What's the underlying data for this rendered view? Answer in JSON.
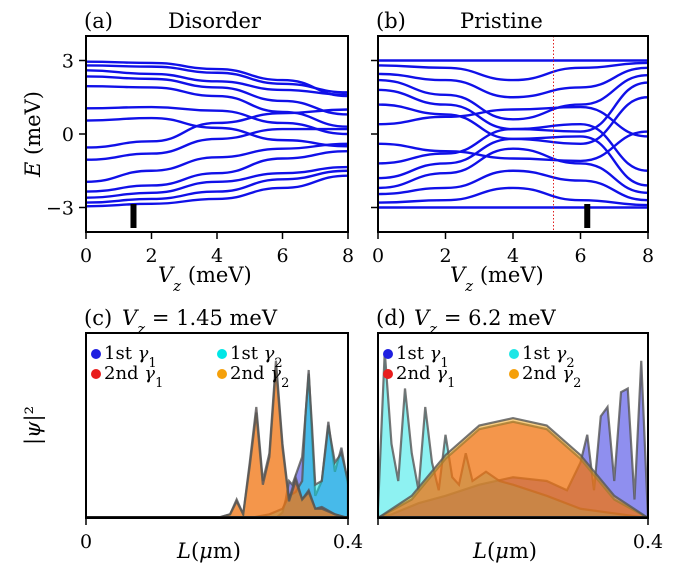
{
  "chart_data": [
    {
      "panel": "(a)",
      "title": "Disorder",
      "type": "line",
      "xlabel": "V_z (meV)",
      "ylabel": "E (meV)",
      "xlim": [
        0,
        8
      ],
      "ylim": [
        -4,
        4
      ],
      "xticks": [
        "0",
        "2",
        "4",
        "6",
        "8"
      ],
      "yticks": [
        "3",
        "0",
        "−3"
      ],
      "series_color": "#1010e8",
      "marker": {
        "x": 1.45,
        "style": "black bar"
      },
      "bands": [
        {
          "x": [
            0,
            2,
            4,
            6,
            8
          ],
          "y": [
            2.95,
            2.9,
            2.65,
            2.2,
            1.55
          ]
        },
        {
          "x": [
            0,
            2,
            4,
            6,
            8
          ],
          "y": [
            2.8,
            2.75,
            2.5,
            2.05,
            1.7
          ]
        },
        {
          "x": [
            0,
            2,
            4,
            6,
            8
          ],
          "y": [
            2.6,
            2.45,
            2.15,
            1.8,
            1.6
          ]
        },
        {
          "x": [
            0,
            2,
            4,
            6,
            8
          ],
          "y": [
            2.35,
            2.25,
            1.9,
            1.35,
            0.8
          ]
        },
        {
          "x": [
            0,
            2,
            4,
            6,
            8
          ],
          "y": [
            1.95,
            1.9,
            1.55,
            0.9,
            0.3
          ]
        },
        {
          "x": [
            0,
            2,
            4,
            6,
            8
          ],
          "y": [
            1.05,
            1.1,
            0.95,
            0.45,
            0.0
          ]
        },
        {
          "x": [
            0,
            2,
            4,
            6,
            8
          ],
          "y": [
            0.55,
            0.65,
            0.25,
            -0.25,
            -0.5
          ]
        },
        {
          "x": [
            0,
            2,
            4,
            6,
            8
          ],
          "y": [
            -0.55,
            -0.3,
            0.45,
            0.85,
            1.0
          ]
        },
        {
          "x": [
            0,
            2,
            4,
            6,
            8
          ],
          "y": [
            -1.05,
            -0.8,
            -0.2,
            0.2,
            0.2
          ]
        },
        {
          "x": [
            0,
            2,
            4,
            6,
            8
          ],
          "y": [
            -1.95,
            -1.5,
            -0.95,
            -0.6,
            -0.4
          ]
        },
        {
          "x": [
            0,
            2,
            4,
            6,
            8
          ],
          "y": [
            -2.35,
            -2.1,
            -1.6,
            -1.0,
            -0.7
          ]
        },
        {
          "x": [
            0,
            2,
            4,
            6,
            8
          ],
          "y": [
            -2.6,
            -2.4,
            -1.95,
            -1.6,
            -1.35
          ]
        },
        {
          "x": [
            0,
            2,
            4,
            6,
            8
          ],
          "y": [
            -2.8,
            -2.65,
            -2.35,
            -1.85,
            -1.5
          ]
        },
        {
          "x": [
            0,
            2,
            4,
            6,
            8
          ],
          "y": [
            -2.95,
            -2.85,
            -2.65,
            -2.2,
            -1.7
          ]
        }
      ]
    },
    {
      "panel": "(b)",
      "title": "Pristine",
      "type": "line",
      "xlabel": "V_z (meV)",
      "ylabel": "",
      "xlim": [
        0,
        8
      ],
      "ylim": [
        -4,
        4
      ],
      "xticks": [
        "0",
        "2",
        "4",
        "6",
        "8"
      ],
      "yticks": [
        "",
        "",
        ""
      ],
      "series_color": "#1010e8",
      "vline": {
        "x": 5.2,
        "color": "#e02020"
      },
      "marker": {
        "x": 6.2,
        "style": "black bar"
      },
      "bands": [
        {
          "x": [
            0,
            2,
            4,
            6,
            8
          ],
          "y": [
            3.0,
            3.0,
            3.0,
            3.0,
            3.0
          ]
        },
        {
          "x": [
            0,
            2,
            4,
            6,
            8
          ],
          "y": [
            2.8,
            2.7,
            2.2,
            2.7,
            2.9
          ]
        },
        {
          "x": [
            0,
            2,
            4,
            6,
            8
          ],
          "y": [
            2.45,
            2.2,
            1.5,
            1.9,
            2.7
          ]
        },
        {
          "x": [
            0,
            2,
            4,
            6,
            8
          ],
          "y": [
            2.2,
            1.6,
            0.6,
            1.2,
            2.4
          ]
        },
        {
          "x": [
            0,
            2,
            4,
            6,
            8
          ],
          "y": [
            1.8,
            1.2,
            0.2,
            0.1,
            2.1
          ]
        },
        {
          "x": [
            0,
            2,
            4,
            6,
            8
          ],
          "y": [
            1.2,
            0.8,
            -0.2,
            -0.4,
            1.5
          ]
        },
        {
          "x": [
            0,
            2,
            4,
            6,
            8
          ],
          "y": [
            0.4,
            0.7,
            1.0,
            1.1,
            -0.1
          ]
        },
        {
          "x": [
            0,
            2,
            4,
            6,
            8
          ],
          "y": [
            -0.4,
            -0.7,
            -1.0,
            -1.1,
            0.1
          ]
        },
        {
          "x": [
            0,
            2,
            4,
            6,
            8
          ],
          "y": [
            -1.2,
            -0.8,
            0.2,
            0.4,
            -1.5
          ]
        },
        {
          "x": [
            0,
            2,
            4,
            6,
            8
          ],
          "y": [
            -1.8,
            -1.2,
            -0.2,
            -0.1,
            -2.1
          ]
        },
        {
          "x": [
            0,
            2,
            4,
            6,
            8
          ],
          "y": [
            -2.2,
            -1.6,
            -0.6,
            -1.2,
            -2.4
          ]
        },
        {
          "x": [
            0,
            2,
            4,
            6,
            8
          ],
          "y": [
            -2.45,
            -2.2,
            -1.5,
            -1.9,
            -2.7
          ]
        },
        {
          "x": [
            0,
            2,
            4,
            6,
            8
          ],
          "y": [
            -2.8,
            -2.7,
            -2.2,
            -2.7,
            -2.9
          ]
        },
        {
          "x": [
            0,
            2,
            4,
            6,
            8
          ],
          "y": [
            -3.0,
            -3.0,
            -3.0,
            -3.0,
            -3.0
          ]
        }
      ]
    },
    {
      "panel": "(c)",
      "title": "V_z = 1.45 meV",
      "type": "area",
      "xlabel": "L(μm)",
      "ylabel": "|ψ|²",
      "xlim": [
        0,
        0.4
      ],
      "ylim": [
        0,
        1
      ],
      "xticks": [
        "0",
        "0.4"
      ],
      "legend_placement": "upper-left",
      "series": [
        {
          "name": "1st γ1",
          "color": "#1f1fe0",
          "x": [
            0,
            0.2,
            0.27,
            0.29,
            0.3,
            0.305,
            0.31,
            0.315,
            0.33,
            0.335,
            0.34,
            0.345,
            0.35,
            0.36,
            0.37,
            0.38,
            0.39,
            0.4
          ],
          "y": [
            0,
            0,
            0,
            0,
            0.03,
            0.1,
            0.2,
            0.18,
            0.33,
            0.55,
            0.8,
            0.45,
            0.12,
            0.2,
            0.52,
            0.25,
            0.38,
            0.18
          ]
        },
        {
          "name": "1st γ2",
          "color": "#00e6e6",
          "x": [
            0,
            0.2,
            0.25,
            0.28,
            0.3,
            0.31,
            0.32,
            0.33,
            0.335,
            0.34,
            0.345,
            0.35,
            0.36,
            0.37,
            0.38,
            0.39,
            0.4
          ],
          "y": [
            0,
            0,
            0,
            0.02,
            0.05,
            0.12,
            0.14,
            0.2,
            0.55,
            0.78,
            0.5,
            0.18,
            0.2,
            0.5,
            0.3,
            0.35,
            0.2
          ]
        },
        {
          "name": "2nd γ1",
          "color": "#e81c1c",
          "x": [
            0,
            0.2,
            0.22,
            0.23,
            0.24,
            0.25,
            0.26,
            0.27,
            0.28,
            0.29,
            0.3,
            0.31,
            0.32,
            0.33,
            0.34,
            0.35,
            0.36,
            0.38,
            0.4
          ],
          "y": [
            0,
            0,
            0.02,
            0.1,
            0.02,
            0.3,
            0.6,
            0.2,
            0.35,
            0.85,
            0.4,
            0.1,
            0.22,
            0.1,
            0.15,
            0.05,
            0.06,
            0.02,
            0.0
          ]
        },
        {
          "name": "2nd γ2",
          "color": "#f5a00a",
          "x": [
            0,
            0.2,
            0.22,
            0.23,
            0.24,
            0.25,
            0.26,
            0.27,
            0.28,
            0.29,
            0.3,
            0.31,
            0.32,
            0.33,
            0.34,
            0.35,
            0.36,
            0.38,
            0.4
          ],
          "y": [
            0,
            0,
            0.02,
            0.09,
            0.02,
            0.28,
            0.57,
            0.18,
            0.33,
            0.82,
            0.38,
            0.09,
            0.2,
            0.1,
            0.14,
            0.05,
            0.05,
            0.02,
            0.0
          ]
        }
      ]
    },
    {
      "panel": "(d)",
      "title": "V_z = 6.2 meV",
      "type": "area",
      "xlabel": "L(μm)",
      "ylabel": "",
      "xlim": [
        0,
        0.4
      ],
      "ylim": [
        0,
        1
      ],
      "xticks": [
        "",
        "0.4"
      ],
      "legend_placement": "upper-left",
      "series": [
        {
          "name": "1st γ1",
          "color": "#1f1fe0",
          "x": [
            0,
            0.02,
            0.04,
            0.06,
            0.1,
            0.15,
            0.2,
            0.25,
            0.28,
            0.3,
            0.31,
            0.32,
            0.33,
            0.34,
            0.35,
            0.36,
            0.37,
            0.38,
            0.39,
            0.4
          ],
          "y": [
            0,
            0.02,
            0.05,
            0.08,
            0.12,
            0.18,
            0.22,
            0.2,
            0.15,
            0.3,
            0.45,
            0.15,
            0.55,
            0.6,
            0.2,
            0.68,
            0.7,
            0.1,
            0.85,
            0.0
          ]
        },
        {
          "name": "1st γ2",
          "color": "#1ee6e6",
          "x": [
            0,
            0.01,
            0.02,
            0.03,
            0.04,
            0.05,
            0.06,
            0.07,
            0.08,
            0.09,
            0.1,
            0.11,
            0.12,
            0.13,
            0.14,
            0.16,
            0.18,
            0.2,
            0.25,
            0.3,
            0.4
          ],
          "y": [
            0.05,
            0.9,
            0.4,
            0.2,
            0.7,
            0.35,
            0.15,
            0.6,
            0.3,
            0.15,
            0.45,
            0.22,
            0.18,
            0.35,
            0.2,
            0.25,
            0.2,
            0.18,
            0.12,
            0.05,
            0.0
          ]
        },
        {
          "name": "2nd γ1",
          "color": "#e81c1c",
          "x": [
            0,
            0.05,
            0.1,
            0.15,
            0.2,
            0.25,
            0.3,
            0.35,
            0.4
          ],
          "y": [
            0,
            0.1,
            0.32,
            0.48,
            0.52,
            0.48,
            0.32,
            0.1,
            0.0
          ]
        },
        {
          "name": "2nd γ2",
          "color": "#f5a00a",
          "x": [
            0,
            0.05,
            0.1,
            0.15,
            0.2,
            0.25,
            0.3,
            0.35,
            0.4
          ],
          "y": [
            0,
            0.12,
            0.34,
            0.5,
            0.54,
            0.5,
            0.34,
            0.12,
            0.0
          ]
        }
      ]
    }
  ]
}
